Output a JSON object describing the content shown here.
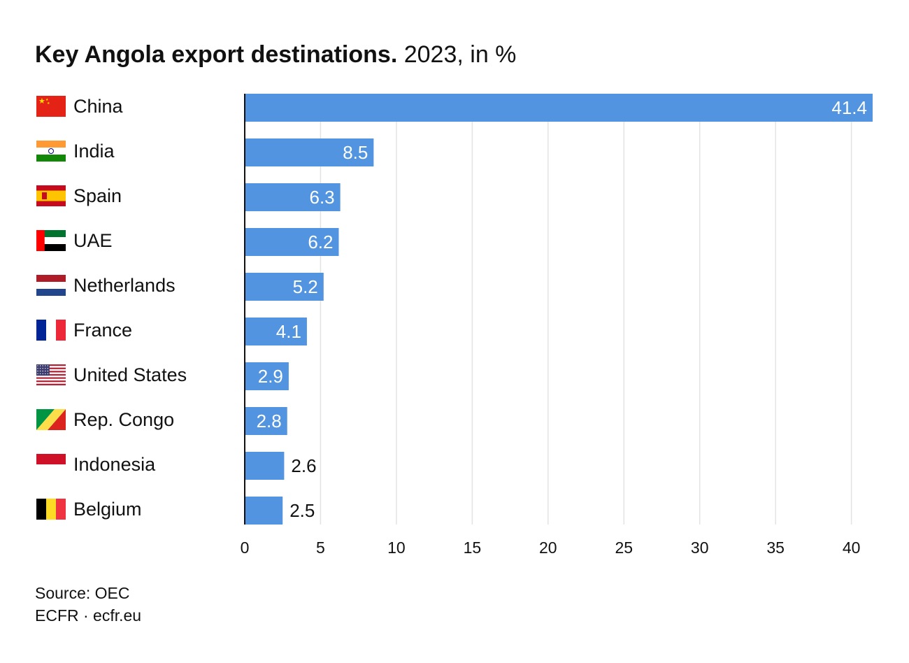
{
  "title": "Key Angola export destinations.",
  "subtitle": "2023, in %",
  "source": "Source: OEC",
  "credit": "ECFR · ecfr.eu",
  "colors": {
    "bar": "#5294e0",
    "grid": "#e3e3e3",
    "axis": "#111111",
    "label_inside": "#ffffff",
    "label_outside": "#111111"
  },
  "chart_data": {
    "type": "bar",
    "orientation": "horizontal",
    "categories": [
      "China",
      "India",
      "Spain",
      "UAE",
      "Netherlands",
      "France",
      "United States",
      "Rep. Congo",
      "Indonesia",
      "Belgium"
    ],
    "values": [
      41.4,
      8.5,
      6.3,
      6.2,
      5.2,
      4.1,
      2.9,
      2.8,
      2.6,
      2.5
    ],
    "value_labels": [
      "41.4",
      "8.5",
      "6.3",
      "6.2",
      "5.2",
      "4.1",
      "2.9",
      "2.8",
      "2.6",
      "2.5"
    ],
    "flag_icons": [
      "china-flag-icon",
      "india-flag-icon",
      "spain-flag-icon",
      "uae-flag-icon",
      "netherlands-flag-icon",
      "france-flag-icon",
      "united-states-flag-icon",
      "rep-congo-flag-icon",
      "indonesia-flag-icon",
      "belgium-flag-icon"
    ],
    "xlim": [
      0,
      41.4
    ],
    "xticks": [
      0,
      5,
      10,
      15,
      20,
      25,
      30,
      35,
      40
    ],
    "xtick_labels": [
      "0",
      "5",
      "10",
      "15",
      "20",
      "25",
      "30",
      "35",
      "40"
    ],
    "grid": true,
    "legend": "none"
  }
}
